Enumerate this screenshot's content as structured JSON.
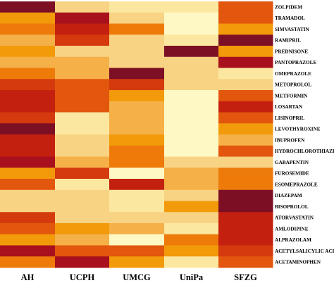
{
  "chart_data": {
    "type": "heatmap",
    "title": "",
    "columns": [
      "AH",
      "UCPH",
      "UMCG",
      "UniPa",
      "SFZG"
    ],
    "rows": [
      "ZOLPIDEM",
      "TRAMADOL",
      "SIMVASTATIN",
      "RAMIPRIL",
      "PREDNISONE",
      "PANTOPRAZOLE",
      "OMEPRAZOLE",
      "METOPROLOL",
      "METFORMIN",
      "LOSARTAN",
      "LISINOPRIL",
      "LEVOTHYROXINE",
      "IBUPROFEN",
      "HYDROCHLOROTHIAZIDE",
      "GABAPENTIN",
      "FUROSEMIDE",
      "ESOMEPRAZOLE",
      "DIAZEPAM",
      "BISOPROLOL",
      "ATORVASTATIN",
      "AMLODIPINE",
      "ALPRAZOLAM",
      "ACETYLSALICYLIC ACID",
      "ACETAMINOPHEN"
    ],
    "color_scale": [
      "#fef9c4",
      "#fce7a0",
      "#f8d383",
      "#f5b048",
      "#f29a0a",
      "#ee7a0a",
      "#e2560d",
      "#d43a0e",
      "#c4200f",
      "#a8101d",
      "#7d0f25"
    ],
    "values": [
      [
        10,
        2,
        1,
        1,
        6
      ],
      [
        4,
        9,
        2,
        0,
        6
      ],
      [
        5,
        8,
        5,
        0,
        4
      ],
      [
        3,
        7,
        2,
        1,
        10
      ],
      [
        4,
        2,
        2,
        10,
        4
      ],
      [
        3,
        3,
        2,
        2,
        9
      ],
      [
        5,
        3,
        10,
        2,
        1
      ],
      [
        7,
        6,
        7,
        2,
        2
      ],
      [
        8,
        6,
        4,
        0,
        6
      ],
      [
        8,
        6,
        3,
        0,
        8
      ],
      [
        7,
        1,
        3,
        0,
        6
      ],
      [
        10,
        1,
        3,
        0,
        4
      ],
      [
        8,
        2,
        4,
        0,
        3
      ],
      [
        8,
        2,
        5,
        0,
        6
      ],
      [
        9,
        3,
        5,
        2,
        2
      ],
      [
        4,
        7,
        0,
        3,
        5
      ],
      [
        6,
        1,
        8,
        3,
        5
      ],
      [
        2,
        2,
        1,
        2,
        10
      ],
      [
        2,
        2,
        1,
        4,
        10
      ],
      [
        7,
        2,
        2,
        2,
        8
      ],
      [
        6,
        4,
        3,
        1,
        8
      ],
      [
        4,
        3,
        0,
        5,
        8
      ],
      [
        9,
        6,
        6,
        4,
        7
      ],
      [
        5,
        9,
        4,
        1,
        6
      ]
    ]
  }
}
